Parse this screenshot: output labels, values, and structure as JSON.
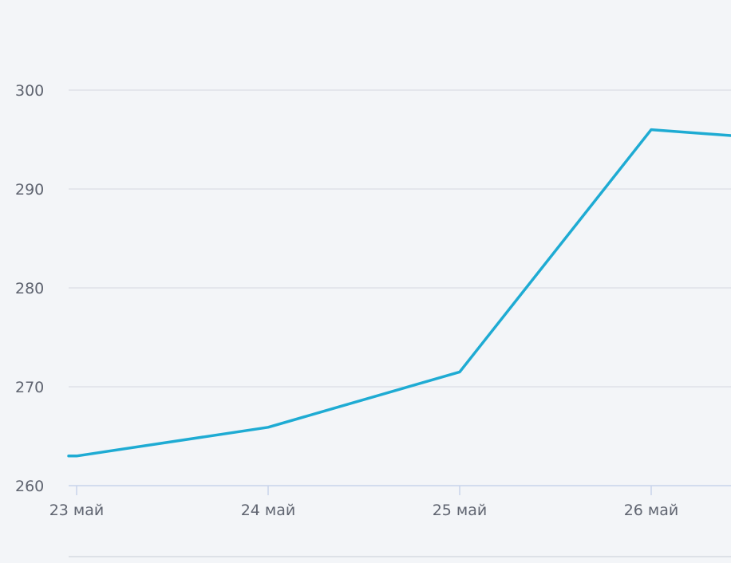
{
  "chart_data": {
    "type": "line",
    "title": "",
    "xlabel": "",
    "ylabel": "",
    "x": [
      "23 май",
      "24 май",
      "25 май",
      "26 май",
      ""
    ],
    "series": [
      {
        "values": [
          263.0,
          265.9,
          271.5,
          296.0,
          295.4
        ],
        "color": "#1eabd3"
      }
    ],
    "x_tick_labels": [
      "23 май",
      "24 май",
      "25 май",
      "26 май"
    ],
    "y_ticks": [
      260,
      270,
      280,
      290,
      300
    ],
    "y_tick_labels": [
      "260",
      "270",
      "280",
      "290",
      "300"
    ],
    "ylim": [
      260,
      300
    ],
    "grid": true,
    "colors": {
      "background": "#f3f5f8",
      "grid": "#dfe2e7",
      "axis": "#c8d3ea",
      "line": "#1eabd3",
      "tick_text": "#5f6470"
    }
  }
}
